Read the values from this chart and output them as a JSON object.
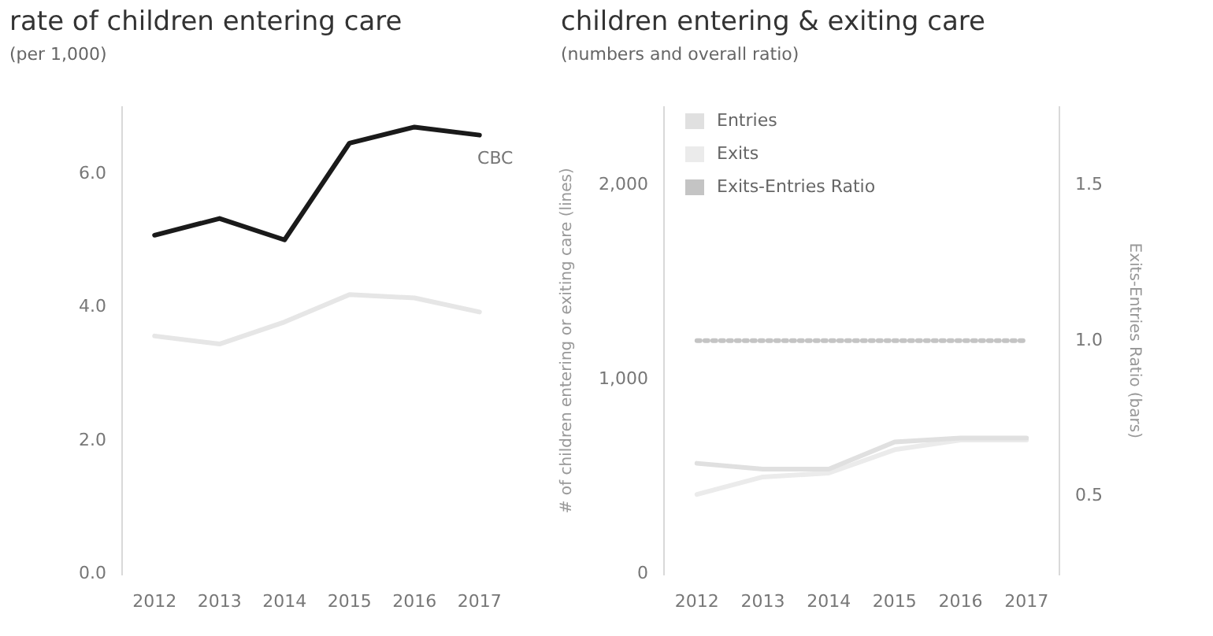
{
  "chart_data": [
    {
      "type": "line",
      "title": "rate of children entering care",
      "subtitle": "(per 1,000)",
      "categories": [
        "2012",
        "2013",
        "2014",
        "2015",
        "2016",
        "2017"
      ],
      "series": [
        {
          "name": "CBC",
          "color": "#1a1a1a",
          "values": [
            5.08,
            5.33,
            5.01,
            6.46,
            6.7,
            6.58
          ]
        },
        {
          "color": "#e6e6e6",
          "values": [
            3.57,
            3.45,
            3.78,
            4.19,
            4.14,
            3.93
          ]
        }
      ],
      "ylim": [
        0,
        7
      ],
      "yticks": [
        {
          "value": 0,
          "label": "0.0"
        },
        {
          "value": 2,
          "label": "2.0"
        },
        {
          "value": 4,
          "label": "4.0"
        },
        {
          "value": 6,
          "label": "6.0"
        }
      ],
      "grid": false,
      "legend": false
    },
    {
      "type": "line",
      "title": "children entering & exiting care",
      "subtitle": "(numbers and overall ratio)",
      "ylabel": "# of children entering or exiting care (lines)",
      "y2label": "Exits-Entries Ratio (bars)",
      "categories": [
        "2012",
        "2013",
        "2014",
        "2015",
        "2016",
        "2017"
      ],
      "series": [
        {
          "name": "Entries",
          "color": "#e0e0e0",
          "values": [
            570,
            540,
            540,
            680,
            700,
            700
          ]
        },
        {
          "name": "Exits",
          "color": "#ebebeb",
          "values": [
            410,
            500,
            520,
            640,
            690,
            690
          ]
        },
        {
          "name": "Exits-Entries Ratio",
          "color": "#c4c4c4",
          "axis": "y2",
          "line_style": "dotted",
          "values": [
            1.0,
            1.0,
            1.0,
            1.0,
            1.0,
            1.0
          ]
        }
      ],
      "ylim": [
        0,
        2400
      ],
      "yticks": [
        {
          "value": 0,
          "label": "0"
        },
        {
          "value": 1000,
          "label": "1,000"
        },
        {
          "value": 2000,
          "label": "2,000"
        }
      ],
      "y2lim": [
        0.25,
        1.75
      ],
      "y2ticks": [
        {
          "value": 0.5,
          "label": "0.5"
        },
        {
          "value": 1,
          "label": "1.0"
        },
        {
          "value": 1.5,
          "label": "1.5"
        }
      ],
      "grid": false,
      "legend": "top left"
    }
  ]
}
